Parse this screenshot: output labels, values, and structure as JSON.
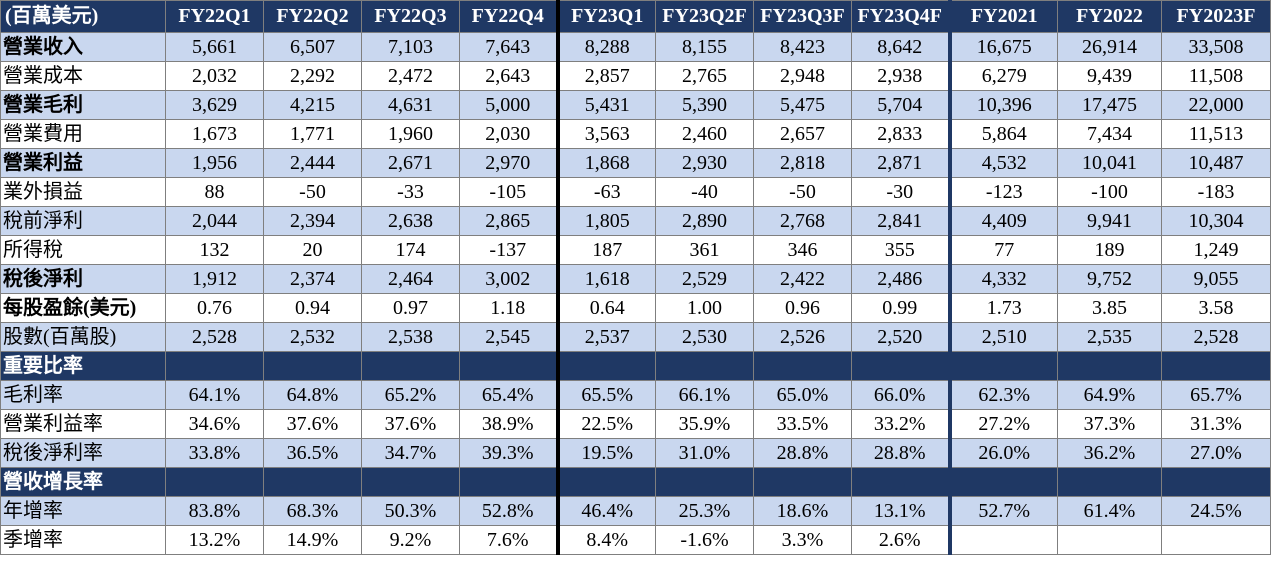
{
  "header": {
    "unit": "(百萬美元)",
    "columns": [
      "FY22Q1",
      "FY22Q2",
      "FY22Q3",
      "FY22Q4",
      "FY23Q1",
      "FY23Q2F",
      "FY23Q3F",
      "FY23Q4F",
      "FY2021",
      "FY2022",
      "FY2023F"
    ]
  },
  "rows": [
    {
      "label": "營業收入",
      "bold": true,
      "style": "blue",
      "values": [
        "5,661",
        "6,507",
        "7,103",
        "7,643",
        "8,288",
        "8,155",
        "8,423",
        "8,642",
        "16,675",
        "26,914",
        "33,508"
      ]
    },
    {
      "label": "營業成本",
      "bold": false,
      "style": "white",
      "values": [
        "2,032",
        "2,292",
        "2,472",
        "2,643",
        "2,857",
        "2,765",
        "2,948",
        "2,938",
        "6,279",
        "9,439",
        "11,508"
      ]
    },
    {
      "label": "營業毛利",
      "bold": true,
      "style": "blue",
      "values": [
        "3,629",
        "4,215",
        "4,631",
        "5,000",
        "5,431",
        "5,390",
        "5,475",
        "5,704",
        "10,396",
        "17,475",
        "22,000"
      ]
    },
    {
      "label": "營業費用",
      "bold": false,
      "style": "white",
      "values": [
        "1,673",
        "1,771",
        "1,960",
        "2,030",
        "3,563",
        "2,460",
        "2,657",
        "2,833",
        "5,864",
        "7,434",
        "11,513"
      ]
    },
    {
      "label": "營業利益",
      "bold": true,
      "style": "blue",
      "values": [
        "1,956",
        "2,444",
        "2,671",
        "2,970",
        "1,868",
        "2,930",
        "2,818",
        "2,871",
        "4,532",
        "10,041",
        "10,487"
      ]
    },
    {
      "label": "業外損益",
      "bold": false,
      "style": "white",
      "values": [
        "88",
        "-50",
        "-33",
        "-105",
        "-63",
        "-40",
        "-50",
        "-30",
        "-123",
        "-100",
        "-183"
      ]
    },
    {
      "label": "稅前淨利",
      "bold": false,
      "style": "blue",
      "values": [
        "2,044",
        "2,394",
        "2,638",
        "2,865",
        "1,805",
        "2,890",
        "2,768",
        "2,841",
        "4,409",
        "9,941",
        "10,304"
      ]
    },
    {
      "label": "所得稅",
      "bold": false,
      "style": "white",
      "values": [
        "132",
        "20",
        "174",
        "-137",
        "187",
        "361",
        "346",
        "355",
        "77",
        "189",
        "1,249"
      ]
    },
    {
      "label": "稅後淨利",
      "bold": true,
      "style": "blue",
      "values": [
        "1,912",
        "2,374",
        "2,464",
        "3,002",
        "1,618",
        "2,529",
        "2,422",
        "2,486",
        "4,332",
        "9,752",
        "9,055"
      ]
    },
    {
      "label": "每股盈餘(美元)",
      "bold": true,
      "style": "white",
      "values": [
        "0.76",
        "0.94",
        "0.97",
        "1.18",
        "0.64",
        "1.00",
        "0.96",
        "0.99",
        "1.73",
        "3.85",
        "3.58"
      ]
    },
    {
      "label": "股數(百萬股)",
      "bold": false,
      "style": "blue",
      "values": [
        "2,528",
        "2,532",
        "2,538",
        "2,545",
        "2,537",
        "2,530",
        "2,526",
        "2,520",
        "2,510",
        "2,535",
        "2,528"
      ]
    },
    {
      "label": "重要比率",
      "section": true,
      "values": [
        "",
        "",
        "",
        "",
        "",
        "",
        "",
        "",
        "",
        "",
        ""
      ]
    },
    {
      "label": "毛利率",
      "bold": false,
      "style": "blue",
      "values": [
        "64.1%",
        "64.8%",
        "65.2%",
        "65.4%",
        "65.5%",
        "66.1%",
        "65.0%",
        "66.0%",
        "62.3%",
        "64.9%",
        "65.7%"
      ]
    },
    {
      "label": "營業利益率",
      "bold": false,
      "style": "white",
      "values": [
        "34.6%",
        "37.6%",
        "37.6%",
        "38.9%",
        "22.5%",
        "35.9%",
        "33.5%",
        "33.2%",
        "27.2%",
        "37.3%",
        "31.3%"
      ]
    },
    {
      "label": "稅後淨利率",
      "bold": false,
      "style": "blue",
      "values": [
        "33.8%",
        "36.5%",
        "34.7%",
        "39.3%",
        "19.5%",
        "31.0%",
        "28.8%",
        "28.8%",
        "26.0%",
        "36.2%",
        "27.0%"
      ]
    },
    {
      "label": "營收增長率",
      "section": true,
      "values": [
        "",
        "",
        "",
        "",
        "",
        "",
        "",
        "",
        "",
        "",
        ""
      ]
    },
    {
      "label": "年增率",
      "bold": false,
      "style": "blue",
      "values": [
        "83.8%",
        "68.3%",
        "50.3%",
        "52.8%",
        "46.4%",
        "25.3%",
        "18.6%",
        "13.1%",
        "52.7%",
        "61.4%",
        "24.5%"
      ]
    },
    {
      "label": "季增率",
      "bold": false,
      "style": "white",
      "values": [
        "13.2%",
        "14.9%",
        "9.2%",
        "7.6%",
        "8.4%",
        "-1.6%",
        "3.3%",
        "2.6%",
        "",
        "",
        ""
      ]
    }
  ]
}
